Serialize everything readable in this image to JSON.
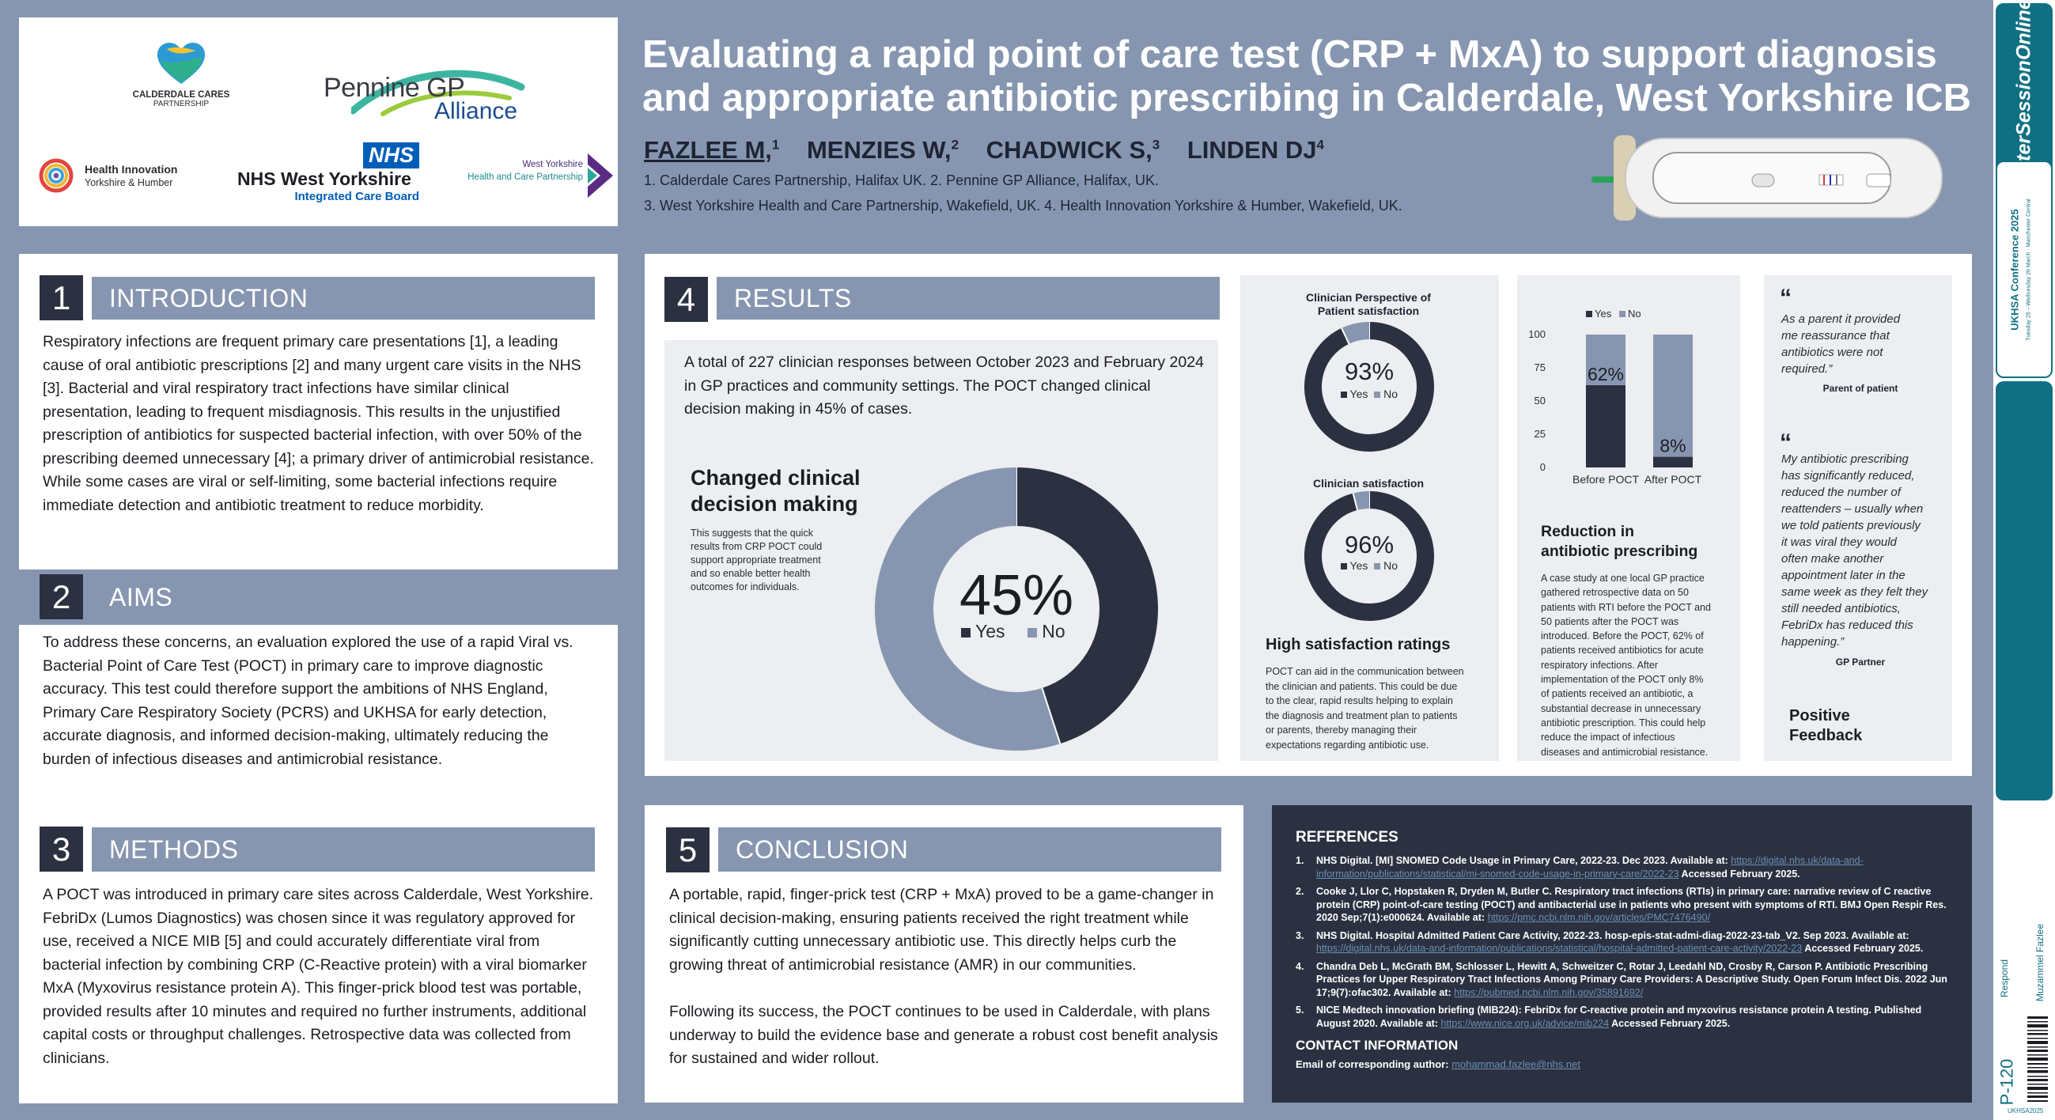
{
  "logos": {
    "calderdale": {
      "line1": "CALDERDALE CARES",
      "line2": "PARTNERSHIP"
    },
    "pennine": {
      "line1": "Pennine GP",
      "line2": "Alliance"
    },
    "health_innovation": {
      "line1": "Health Innovation",
      "line2": "Yorkshire & Humber"
    },
    "nhs": {
      "badge": "NHS",
      "line1": "NHS West Yorkshire",
      "line2": "Integrated Care Board"
    },
    "wyhcp": {
      "line1": "West Yorkshire",
      "line2": "Health and Care Partnership"
    }
  },
  "title": {
    "line1": "Evaluating a rapid point of care test (CRP + MxA) to support diagnosis",
    "line2": "and appropriate antibiotic prescribing in Calderdale, West Yorkshire ICB"
  },
  "authors": [
    {
      "name": "FAZLEE M,",
      "sup": "1"
    },
    {
      "name": "MENZIES W,",
      "sup": "2"
    },
    {
      "name": "CHADWICK S,",
      "sup": "3"
    },
    {
      "name": "LINDEN DJ",
      "sup": "4"
    }
  ],
  "affiliations": {
    "line1": "1.  Calderdale Cares Partnership, Halifax UK. 2. Pennine GP Alliance, Halifax, UK.",
    "line2": "3. West Yorkshire Health and Care Partnership, Wakefield, UK. 4. Health Innovation Yorkshire & Humber, Wakefield, UK."
  },
  "sections": {
    "introduction": {
      "num": "1",
      "title": "INTRODUCTION",
      "lines": [
        "Respiratory infections are frequent primary care presentations [1], a leading",
        "cause of oral antibiotic prescriptions [2] and many urgent  care visits in the NHS",
        "[3]. Bacterial and viral respiratory tract infections have similar clinical",
        "presentation, leading to frequent misdiagnosis. This results in the unjustified",
        "prescription of antibiotics for suspected bacterial infection, with over 50% of the",
        "prescribing deemed unnecessary [4]; a primary driver of antimicrobial resistance.",
        "While some cases are viral or self-limiting, some bacterial infections require",
        "immediate detection and antibiotic treatment to reduce morbidity."
      ]
    },
    "aims": {
      "num": "2",
      "title": "AIMS",
      "lines": [
        "To address these concerns, an evaluation explored the use of a rapid Viral vs.",
        "Bacterial Point of Care Test (POCT) in primary care to improve diagnostic",
        "accuracy. This test could therefore support the ambitions of NHS England,",
        "Primary Care Respiratory Society (PCRS) and UKHSA for early detection,",
        "accurate diagnosis, and informed decision-making, ultimately reducing the",
        "burden of infectious diseases and antimicrobial resistance."
      ]
    },
    "methods": {
      "num": "3",
      "title": "METHODS",
      "lines": [
        "A POCT was introduced in primary care sites across Calderdale, West Yorkshire.",
        "FebriDx (Lumos Diagnostics) was chosen since it was regulatory approved for",
        "use, received a NICE MIB [5] and could accurately differentiate viral from",
        "bacterial infection by combining CRP (C-Reactive protein) with a viral biomarker",
        "MxA (Myxovirus resistance protein A). This finger-prick blood test was portable,",
        "provided results after 10 minutes and required no further instruments, additional",
        "capital costs or throughput challenges. Retrospective data was collected from",
        "clinicians."
      ]
    },
    "results": {
      "num": "4",
      "title": "RESULTS",
      "intro_lines": [
        "A total of 227 clinician responses between October 2023 and February 2024",
        "in GP practices and community settings. The POCT changed clinical",
        "decision making in 45% of cases."
      ],
      "changed_heading": [
        "Changed clinical",
        "decision making"
      ],
      "changed_text": [
        "This suggests that the quick",
        "results from CRP POCT could",
        "support appropriate treatment",
        "and so enable better health",
        "outcomes for individuals."
      ]
    },
    "conclusion": {
      "num": "5",
      "title": "CONCLUSION",
      "para1": [
        "A portable, rapid, finger-prick test (CRP + MxA) proved to be a game-changer in",
        "clinical decision-making, ensuring patients received the right treatment while",
        "significantly cutting unnecessary antibiotic use. This directly helps curb the",
        "growing threat of antimicrobial resistance (AMR) in our communities."
      ],
      "para2": [
        "Following its success, the POCT continues to be used in Calderdale, with plans",
        "underway to build the evidence base and generate a robust cost benefit analysis",
        "for sustained and wider rollout."
      ]
    }
  },
  "satisfaction_panel": {
    "heading": "High satisfaction ratings",
    "text": [
      "POCT can aid in the communication between",
      "the clinician and patients. This could be due",
      "to the clear, rapid results  helping to explain",
      "the diagnosis and treatment plan to patients",
      "or parents, thereby managing their",
      "expectations regarding antibiotic use."
    ]
  },
  "reduction_panel": {
    "heading": [
      "Reduction in",
      "antibiotic prescribing"
    ],
    "text": [
      "A case study at one local GP practice",
      "gathered retrospective data on 50",
      "patients with RTI before the POCT and",
      "50 patients after the POCT was",
      "introduced. Before the POCT, 62% of",
      "patients received antibiotics for acute",
      "respiratory infections. After",
      "implementation of the POCT only 8%",
      "of patients received an antibiotic, a",
      "substantial decrease in unnecessary",
      "antibiotic prescription. This could help",
      "reduce the impact of infectious",
      "diseases and antimicrobial resistance."
    ]
  },
  "feedback_panel": {
    "open_quote": "“",
    "quote1": [
      "As a parent it provided",
      "me reassurance that",
      "antibiotics were not",
      "required.”"
    ],
    "quote1_by": "Parent of patient",
    "quote2": [
      "My antibiotic prescribing",
      "has significantly reduced,",
      "reduced the number of",
      "reattenders – usually when",
      "we told patients previously",
      "it was viral they would",
      "often make another",
      "appointment later in the",
      "same week as they felt they",
      "still needed antibiotics,",
      "FebriDx has reduced this",
      "happening.”"
    ],
    "quote2_by": "GP Partner",
    "heading": [
      "Positive",
      "Feedback"
    ]
  },
  "chart_data": [
    {
      "type": "pie",
      "variant": "donut",
      "center_label": "45%",
      "categories": [
        "Yes",
        "No"
      ],
      "values": [
        45,
        55
      ],
      "legend": [
        "Yes",
        "No"
      ],
      "colors": [
        "#2b3140",
        "#8796b0"
      ]
    },
    {
      "type": "pie",
      "variant": "donut",
      "title": "Clinician Perspective of Patient satisfaction",
      "title_lines": [
        "Clinician Perspective of",
        "Patient satisfaction"
      ],
      "center_label": "93%",
      "categories": [
        "Yes",
        "No"
      ],
      "values": [
        93,
        7
      ],
      "legend": [
        "Yes",
        "No"
      ],
      "colors": [
        "#2b3140",
        "#8796b0"
      ]
    },
    {
      "type": "pie",
      "variant": "donut",
      "title": "Clinician satisfaction",
      "center_label": "96%",
      "categories": [
        "Yes",
        "No"
      ],
      "values": [
        96,
        4
      ],
      "legend": [
        "Yes",
        "No"
      ],
      "colors": [
        "#2b3140",
        "#8796b0"
      ]
    },
    {
      "type": "bar",
      "stacked": true,
      "categories": [
        "Before POCT",
        "After POCT"
      ],
      "series": [
        {
          "name": "Yes",
          "values": [
            62,
            8
          ],
          "color": "#2b3140"
        },
        {
          "name": "No",
          "values": [
            38,
            92
          ],
          "color": "#8796b0"
        }
      ],
      "data_labels": [
        "62%",
        "8%"
      ],
      "yticks": [
        "0",
        "25",
        "50",
        "75",
        "100"
      ],
      "ylim": [
        0,
        100
      ],
      "legend_position": "top"
    }
  ],
  "references": {
    "heading": "REFERENCES",
    "items": [
      {
        "n": "1.",
        "text": "NHS Digital. [MI] SNOMED Code Usage in Primary Care, 2022-23. Dec 2023. Available at: ",
        "link": "https://digital.nhs.uk/data-and-information/publications/statistical/mi-snomed-code-usage-in-primary-care/2022-23",
        "after": " Accessed February 2025."
      },
      {
        "n": "2.",
        "text": "Cooke J, Llor C, Hopstaken R, Dryden M, Butler C. Respiratory tract infections (RTIs) in primary care: narrative review of C reactive protein (CRP) point-of-care testing (POCT) and antibacterial use in patients who present with symptoms of RTI. BMJ Open Respir Res. 2020 Sep;7(1):e000624. Available at: ",
        "link": "https://pmc.ncbi.nlm.nih.gov/articles/PMC7476490/",
        "after": ""
      },
      {
        "n": "3.",
        "text": "NHS Digital. Hospital Admitted Patient Care Activity, 2022-23. hosp-epis-stat-admi-diag-2022-23-tab_V2. Sep 2023. Available at: ",
        "link": "https://digital.nhs.uk/data-and-information/publications/statistical/hospital-admitted-patient-care-activity/2022-23",
        "after": " Accessed February 2025."
      },
      {
        "n": "4.",
        "text": "Chandra Deb L, McGrath BM, Schlosser L, Hewitt A, Schweitzer C, Rotar J, Leedahl ND, Crosby R, Carson P. Antibiotic Prescribing Practices for Upper Respiratory Tract Infections Among Primary Care Providers: A Descriptive Study. Open Forum Infect Dis. 2022 Jun 17;9(7):ofac302. Available at: ",
        "link": "https://pubmed.ncbi.nlm.nih.gov/35891692/",
        "after": ""
      },
      {
        "n": "5.",
        "text": "NICE Medtech innovation briefing (MIB224): FebriDx for C-reactive protein and myxovirus resistance protein A testing. Published August 2020. Available at: ",
        "link": "https://www.nice.org.uk/advice/mib224",
        "after": " Accessed February 2025."
      }
    ],
    "contact_heading": "CONTACT INFORMATION",
    "contact_label": "Email of corresponding author: ",
    "contact_email": "mohammad.fazlee@nhs.net"
  },
  "sidebar": {
    "brand": "PosterSessionOnline",
    "conference": "UKHSA Conference 2025",
    "conference_dates": "Tuesday 25 – Wednesday 26 March · Manchester Central",
    "respond": "Respond",
    "author": "Muzammel Fazlee",
    "poster_id": "P-120",
    "code": "UKHSA2025"
  }
}
